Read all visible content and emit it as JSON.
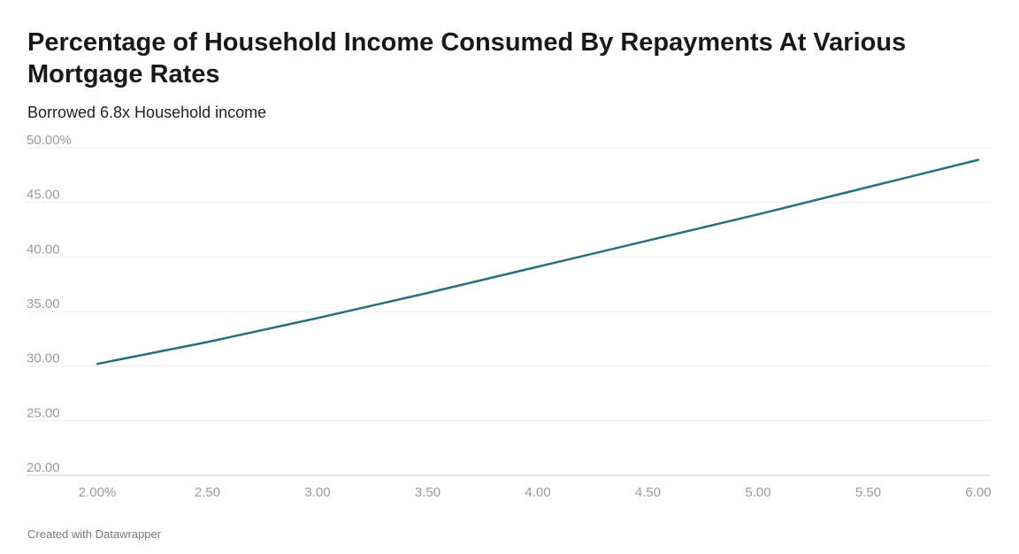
{
  "chart_data": {
    "type": "line",
    "title": "Percentage of Household Income Consumed By Repayments At Various Mortgage Rates",
    "subtitle": "Borrowed 6.8x Household income",
    "xlabel": "",
    "ylabel": "",
    "xlim": [
      2.0,
      6.0
    ],
    "ylim": [
      20,
      50
    ],
    "x_ticks": [
      2.0,
      2.5,
      3.0,
      3.5,
      4.0,
      4.5,
      5.0,
      5.5,
      6.0
    ],
    "x_tick_labels": [
      "2.00%",
      "2.50",
      "3.00",
      "3.50",
      "4.00",
      "4.50",
      "5.00",
      "5.50",
      "6.00"
    ],
    "y_ticks": [
      20,
      25,
      30,
      35,
      40,
      45,
      50
    ],
    "y_tick_labels": [
      "20.00",
      "25.00",
      "30.00",
      "35.00",
      "40.00",
      "45.00",
      "50.00%"
    ],
    "grid": true,
    "legend": "none",
    "series": [
      {
        "color": "#2b6f7e",
        "x": [
          2.0,
          2.5,
          3.0,
          3.5,
          4.0,
          4.5,
          5.0,
          5.5,
          6.0
        ],
        "y": [
          30.2,
          32.2,
          34.4,
          36.7,
          39.1,
          41.5,
          43.9,
          46.4,
          48.9
        ]
      }
    ],
    "source": "Created with Datawrapper"
  }
}
